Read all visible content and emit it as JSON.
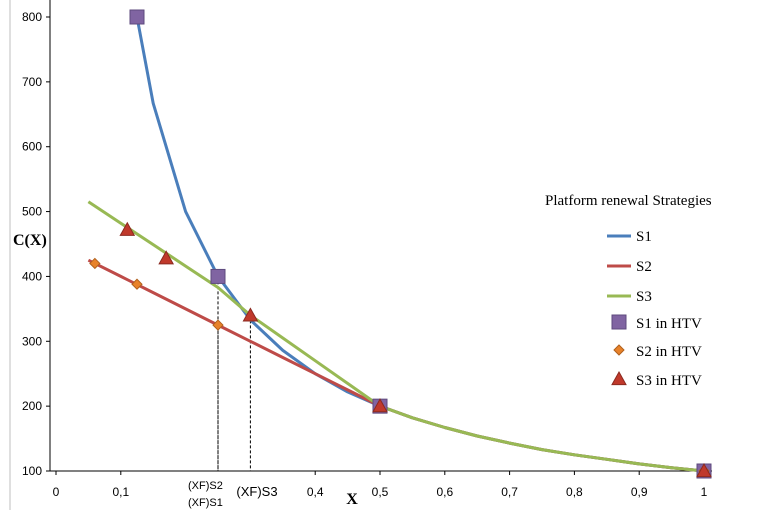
{
  "chart_data": {
    "type": "line",
    "xlabel": "X",
    "ylabel": "C(X)",
    "xlim": [
      0,
      1
    ],
    "ylim": [
      100,
      800
    ],
    "x_ticks": [
      "0",
      "0,1",
      "0,4",
      "0,5",
      "0,6",
      "0,7",
      "0,8",
      "0,9",
      "1"
    ],
    "y_ticks": [
      "100",
      "200",
      "300",
      "400",
      "500",
      "600",
      "700",
      "800"
    ],
    "grid": false,
    "legend_title": "Platform renewal  Strategies",
    "legend_position": "right",
    "series": [
      {
        "name": "S1",
        "color": "#4a7ebb",
        "x": [
          0.125,
          0.15,
          0.2,
          0.25,
          0.3,
          0.35,
          0.4,
          0.45,
          0.5,
          0.55,
          0.6,
          0.65,
          0.7,
          0.75,
          0.8,
          0.85,
          0.9,
          0.95,
          1.0
        ],
        "y": [
          800,
          667,
          500,
          400,
          333,
          286,
          250,
          222,
          200,
          182,
          167,
          154,
          143,
          133,
          125,
          118,
          111,
          105,
          100
        ]
      },
      {
        "name": "S2",
        "color": "#be4b48",
        "x": [
          0.05,
          0.1,
          0.15,
          0.2,
          0.25,
          0.3,
          0.35,
          0.4,
          0.45,
          0.5,
          0.55,
          0.6,
          0.65,
          0.7,
          0.75,
          0.8,
          0.85,
          0.9,
          0.95,
          1.0
        ],
        "y": [
          425,
          400,
          375,
          350,
          325,
          300,
          275,
          250,
          225,
          200,
          182,
          167,
          154,
          143,
          133,
          125,
          118,
          111,
          105,
          100
        ]
      },
      {
        "name": "S3",
        "color": "#98b954",
        "x": [
          0.05,
          0.1,
          0.15,
          0.2,
          0.25,
          0.3,
          0.35,
          0.4,
          0.45,
          0.5,
          0.55,
          0.6,
          0.65,
          0.7,
          0.75,
          0.8,
          0.85,
          0.9,
          0.95,
          1.0
        ],
        "y": [
          515,
          482,
          449,
          416,
          383,
          340,
          305,
          270,
          235,
          200,
          182,
          167,
          154,
          143,
          133,
          125,
          118,
          111,
          105,
          100
        ]
      }
    ],
    "marker_series": [
      {
        "name": "S1 in HTV",
        "shape": "square",
        "color": "#8064a2",
        "x": [
          0.125,
          0.25,
          0.5,
          1.0
        ],
        "y": [
          800,
          400,
          200,
          100
        ]
      },
      {
        "name": "S2 in HTV",
        "shape": "diamond",
        "color": "#e8822a",
        "x": [
          0.06,
          0.125,
          0.25,
          1.0
        ],
        "y": [
          420,
          388,
          325,
          100
        ]
      },
      {
        "name": "S3 in HTV",
        "shape": "triangle",
        "color": "#c0392b",
        "x": [
          0.11,
          0.17,
          0.3,
          0.5,
          1.0
        ],
        "y": [
          472,
          428,
          340,
          200,
          100
        ]
      }
    ],
    "annotations": [
      {
        "label": "(XF)S2",
        "x": 0.25,
        "y": 325
      },
      {
        "label": "(XF)S1",
        "x": 0.25,
        "y": 400
      },
      {
        "label": "(XF)S3",
        "x": 0.3,
        "y": 340
      }
    ]
  }
}
